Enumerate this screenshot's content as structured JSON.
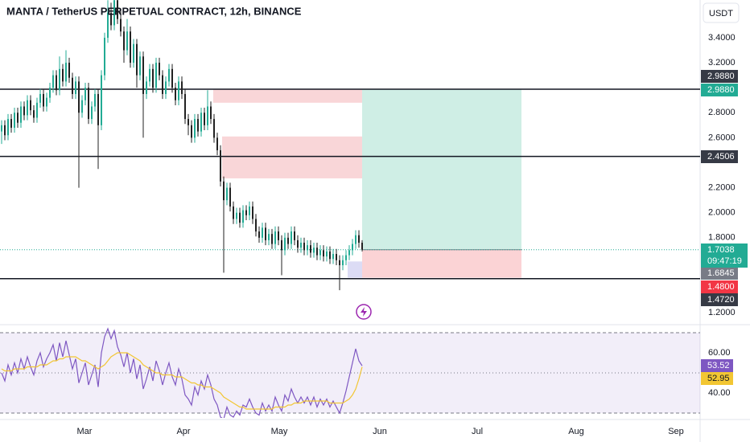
{
  "title": "MANTA / TetherUS PERPETUAL CONTRACT, 12h, BINANCE",
  "currency_button": "USDT",
  "chart_data": [
    {
      "type": "candlestick",
      "up_color": "#22ab94",
      "down_color": "#222222",
      "open": [
        2.65,
        2.7,
        2.62,
        2.75,
        2.68,
        2.8,
        2.72,
        2.85,
        2.78,
        2.9,
        2.82,
        2.76,
        2.88,
        2.95,
        2.85,
        2.92,
        3.0,
        3.1,
        2.98,
        3.15,
        3.05,
        3.2,
        3.08,
        2.95,
        3.05,
        2.8,
        2.9,
        3.0,
        2.75,
        2.85,
        2.95,
        2.7,
        3.1,
        3.4,
        3.6,
        3.5,
        3.7,
        3.55,
        3.45,
        3.3,
        3.45,
        3.2,
        3.35,
        3.1,
        3.25,
        2.95,
        3.05,
        3.15,
        3.0,
        3.2,
        3.1,
        2.95,
        3.05,
        3.15,
        3.0,
        2.9,
        3.05,
        2.95,
        2.75,
        2.7,
        2.6,
        2.75,
        2.65,
        2.8,
        2.7,
        2.85,
        2.75,
        2.6,
        2.5,
        2.25,
        2.1,
        2.2,
        2.05,
        1.95,
        2.0,
        1.92,
        2.02,
        1.98,
        2.05,
        1.95,
        1.85,
        1.8,
        1.88,
        1.78,
        1.83,
        1.75,
        1.85,
        1.78,
        1.7,
        1.8,
        1.75,
        1.85,
        1.78,
        1.72,
        1.76,
        1.7,
        1.74,
        1.68,
        1.72,
        1.66,
        1.7,
        1.65,
        1.69,
        1.63,
        1.67,
        1.62,
        1.58,
        1.62,
        1.66,
        1.7,
        1.75,
        1.82,
        1.76
      ],
      "high": [
        2.74,
        2.74,
        2.79,
        2.79,
        2.84,
        2.84,
        2.89,
        2.89,
        2.94,
        2.94,
        2.86,
        2.92,
        2.99,
        2.99,
        2.96,
        3.04,
        3.14,
        3.14,
        3.25,
        3.19,
        3.3,
        3.24,
        3.12,
        3.09,
        3.09,
        2.94,
        3.04,
        3.04,
        2.89,
        2.99,
        2.99,
        3.14,
        3.44,
        3.7,
        3.68,
        3.72,
        3.74,
        3.62,
        3.49,
        3.55,
        3.49,
        3.39,
        3.39,
        3.29,
        3.29,
        3.09,
        3.19,
        3.19,
        3.24,
        3.24,
        3.14,
        3.09,
        3.19,
        3.19,
        3.04,
        3.09,
        3.09,
        2.99,
        2.79,
        2.74,
        2.79,
        2.79,
        2.84,
        2.84,
        2.98,
        2.89,
        2.79,
        2.64,
        2.54,
        2.29,
        2.24,
        2.24,
        2.09,
        2.04,
        2.04,
        2.06,
        2.06,
        2.09,
        2.09,
        1.99,
        1.89,
        1.92,
        1.92,
        1.87,
        1.87,
        1.89,
        1.89,
        1.82,
        1.84,
        1.84,
        1.89,
        1.89,
        1.82,
        1.8,
        1.8,
        1.78,
        1.78,
        1.76,
        1.76,
        1.74,
        1.74,
        1.73,
        1.73,
        1.71,
        1.71,
        1.66,
        1.66,
        1.7,
        1.74,
        1.79,
        1.86,
        1.86,
        1.78
      ],
      "low": [
        2.55,
        2.58,
        2.58,
        2.64,
        2.64,
        2.68,
        2.68,
        2.74,
        2.74,
        2.78,
        2.72,
        2.72,
        2.84,
        2.81,
        2.81,
        2.88,
        2.96,
        2.94,
        2.94,
        3.01,
        3.01,
        3.04,
        2.91,
        2.91,
        2.2,
        2.76,
        2.86,
        2.71,
        2.71,
        2.81,
        2.35,
        2.66,
        3.06,
        3.36,
        3.46,
        3.46,
        3.51,
        3.41,
        3.2,
        3.26,
        3.16,
        3.16,
        3.0,
        3.06,
        2.6,
        2.91,
        3.01,
        2.96,
        2.96,
        3.06,
        2.91,
        2.91,
        3.01,
        2.96,
        2.86,
        2.86,
        2.91,
        2.71,
        2.62,
        2.56,
        2.56,
        2.61,
        2.61,
        2.66,
        2.66,
        2.71,
        2.56,
        2.46,
        2.21,
        1.52,
        2.06,
        2.01,
        1.91,
        1.91,
        1.88,
        1.88,
        1.94,
        1.94,
        1.91,
        1.81,
        1.76,
        1.76,
        1.74,
        1.74,
        1.71,
        1.71,
        1.74,
        1.5,
        1.66,
        1.71,
        1.71,
        1.74,
        1.68,
        1.68,
        1.66,
        1.66,
        1.64,
        1.64,
        1.62,
        1.62,
        1.61,
        1.61,
        1.59,
        1.59,
        1.58,
        1.38,
        1.54,
        1.58,
        1.62,
        1.66,
        1.71,
        1.72,
        1.69
      ],
      "close": [
        2.7,
        2.62,
        2.75,
        2.68,
        2.8,
        2.72,
        2.85,
        2.78,
        2.9,
        2.82,
        2.76,
        2.88,
        2.95,
        2.85,
        2.92,
        3.0,
        3.1,
        2.98,
        3.15,
        3.05,
        3.2,
        3.08,
        2.95,
        3.05,
        2.8,
        2.9,
        3.0,
        2.75,
        2.85,
        2.95,
        2.7,
        3.1,
        3.4,
        3.6,
        3.5,
        3.7,
        3.55,
        3.45,
        3.3,
        3.45,
        3.2,
        3.35,
        3.1,
        3.25,
        2.95,
        3.05,
        3.15,
        3.0,
        3.2,
        3.1,
        2.95,
        3.05,
        3.15,
        3.0,
        2.9,
        3.05,
        2.95,
        2.75,
        2.7,
        2.6,
        2.75,
        2.65,
        2.8,
        2.7,
        2.85,
        2.75,
        2.6,
        2.5,
        2.25,
        2.1,
        2.2,
        2.05,
        1.95,
        2.0,
        1.92,
        2.02,
        1.98,
        2.05,
        1.95,
        1.85,
        1.8,
        1.88,
        1.78,
        1.83,
        1.75,
        1.85,
        1.78,
        1.7,
        1.8,
        1.75,
        1.85,
        1.78,
        1.72,
        1.76,
        1.7,
        1.74,
        1.68,
        1.72,
        1.66,
        1.7,
        1.65,
        1.69,
        1.63,
        1.67,
        1.62,
        1.58,
        1.62,
        1.66,
        1.7,
        1.75,
        1.82,
        1.76,
        1.7038
      ],
      "countdown": "09:47:19",
      "xlim": [
        -0.5,
        217
      ],
      "xticks": [
        {
          "value": 25.75,
          "label": "Mar"
        },
        {
          "value": 56.5,
          "label": "Apr"
        },
        {
          "value": 86.25,
          "label": "May"
        },
        {
          "value": 117.5,
          "label": "Jun"
        },
        {
          "value": 147.75,
          "label": "Jul"
        },
        {
          "value": 178.5,
          "label": "Aug"
        },
        {
          "value": 209.5,
          "label": "Sep"
        }
      ],
      "ylim": [
        1.13,
        3.702
      ],
      "yticks": [
        {
          "value": 3.4,
          "label": "3.4000"
        },
        {
          "value": 3.2,
          "label": "3.2000"
        },
        {
          "value": 2.8,
          "label": "2.8000"
        },
        {
          "value": 2.6,
          "label": "2.6000"
        },
        {
          "value": 2.2,
          "label": "2.2000"
        },
        {
          "value": 2.0,
          "label": "2.0000"
        },
        {
          "value": 1.8,
          "label": "1.8000"
        },
        {
          "value": 1.2,
          "label": "1.2000"
        }
      ],
      "lines": [
        2.988,
        2.4506,
        1.472
      ],
      "zones": [
        {
          "top": 2.988,
          "bottom": 2.88,
          "color": "#f9d6d8"
        },
        {
          "top": 2.61,
          "bottom": 2.275,
          "color": "#f9d6d8"
        },
        {
          "top": 1.61,
          "bottom": 1.48,
          "color": "#dcdcf5"
        }
      ],
      "position": {
        "target": 2.988,
        "entry": 1.7038,
        "stop": 1.48,
        "profit_color": "#cfeee5",
        "loss_color": "#fbd3d5"
      },
      "price_tags": [
        {
          "value": 2.988,
          "label": "2.9880",
          "color": "#363a45"
        },
        {
          "value": 2.988,
          "label": "2.9880",
          "color": "#22ab94"
        },
        {
          "value": 2.4506,
          "label": "2.4506",
          "color": "#363a45"
        },
        {
          "value": 1.6845,
          "label": "1.6845",
          "color": "#787b86"
        },
        {
          "value": 1.48,
          "label": "1.4800",
          "color": "#f23645"
        },
        {
          "value": 1.472,
          "label": "1.4720",
          "color": "#363a45"
        }
      ]
    },
    {
      "type": "line",
      "xlim": [
        -0.5,
        217
      ],
      "ylim": [
        27.6,
        73.6
      ],
      "yticks": [
        {
          "value": 60,
          "label": "60.00"
        },
        {
          "value": 40,
          "label": "40.00"
        }
      ],
      "bands": [
        70,
        50,
        30
      ],
      "series": [
        {
          "color": "#7e57c2",
          "values": [
            50,
            46,
            54,
            49,
            55,
            50,
            57,
            52,
            58,
            53,
            49,
            56,
            60,
            53,
            57,
            60,
            64,
            56,
            65,
            58,
            66,
            59,
            52,
            57,
            45,
            50,
            55,
            44,
            49,
            54,
            43,
            60,
            68,
            72,
            67,
            71,
            63,
            59,
            53,
            60,
            50,
            57,
            47,
            54,
            42,
            47,
            53,
            46,
            56,
            51,
            44,
            50,
            55,
            48,
            44,
            52,
            47,
            39,
            37,
            34,
            43,
            39,
            46,
            42,
            49,
            44,
            37,
            34,
            28,
            27,
            33,
            29,
            28,
            31,
            29,
            34,
            33,
            37,
            33,
            30,
            29,
            35,
            31,
            34,
            31,
            38,
            34,
            31,
            39,
            36,
            42,
            38,
            35,
            38,
            35,
            38,
            34,
            38,
            33,
            37,
            34,
            37,
            33,
            36,
            33,
            30,
            35,
            41,
            48,
            55,
            62,
            56,
            53.52
          ]
        },
        {
          "color": "#f2c633",
          "values": [
            52,
            51,
            51,
            51,
            52,
            52,
            52,
            52,
            53,
            53,
            53,
            53,
            54,
            54,
            54,
            55,
            56,
            56,
            57,
            57,
            58,
            58,
            58,
            58,
            57,
            56,
            56,
            55,
            54,
            53,
            52,
            53,
            54,
            56,
            58,
            59,
            60,
            60,
            60,
            60,
            59,
            58,
            57,
            56,
            54,
            53,
            52,
            51,
            50,
            50,
            49,
            49,
            49,
            49,
            48,
            48,
            48,
            47,
            46,
            45,
            45,
            44,
            44,
            43,
            43,
            43,
            42,
            41,
            40,
            38,
            37,
            36,
            35,
            34,
            33,
            33,
            32,
            32,
            32,
            32,
            32,
            32,
            32,
            32,
            32,
            33,
            33,
            33,
            33,
            34,
            34,
            35,
            35,
            35,
            36,
            36,
            36,
            36,
            36,
            36,
            36,
            36,
            35,
            35,
            35,
            35,
            35,
            36,
            37,
            39,
            42,
            47,
            52.95
          ]
        }
      ]
    }
  ]
}
